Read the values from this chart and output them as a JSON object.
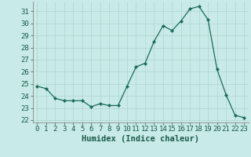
{
  "x": [
    0,
    1,
    2,
    3,
    4,
    5,
    6,
    7,
    8,
    9,
    10,
    11,
    12,
    13,
    14,
    15,
    16,
    17,
    18,
    19,
    20,
    21,
    22,
    23
  ],
  "y": [
    24.8,
    24.6,
    23.8,
    23.6,
    23.6,
    23.6,
    23.1,
    23.35,
    23.2,
    23.2,
    24.8,
    26.4,
    26.7,
    28.5,
    29.8,
    29.4,
    30.2,
    31.2,
    31.4,
    30.3,
    26.2,
    24.1,
    22.4,
    22.2
  ],
  "line_color": "#1a6b5a",
  "marker_color": "#1a6b5a",
  "bg_color": "#c8eae8",
  "grid_color": "#b0d4d0",
  "xlabel": "Humidex (Indice chaleur)",
  "xlim": [
    -0.5,
    23.5
  ],
  "ylim": [
    21.8,
    31.8
  ],
  "yticks": [
    22,
    23,
    24,
    25,
    26,
    27,
    28,
    29,
    30,
    31
  ],
  "xticks": [
    0,
    1,
    2,
    3,
    4,
    5,
    6,
    7,
    8,
    9,
    10,
    11,
    12,
    13,
    14,
    15,
    16,
    17,
    18,
    19,
    20,
    21,
    22,
    23
  ],
  "tick_label_color": "#1a5a4a",
  "axis_color": "#888888",
  "label_fontsize": 7.5,
  "tick_fontsize": 6.5
}
